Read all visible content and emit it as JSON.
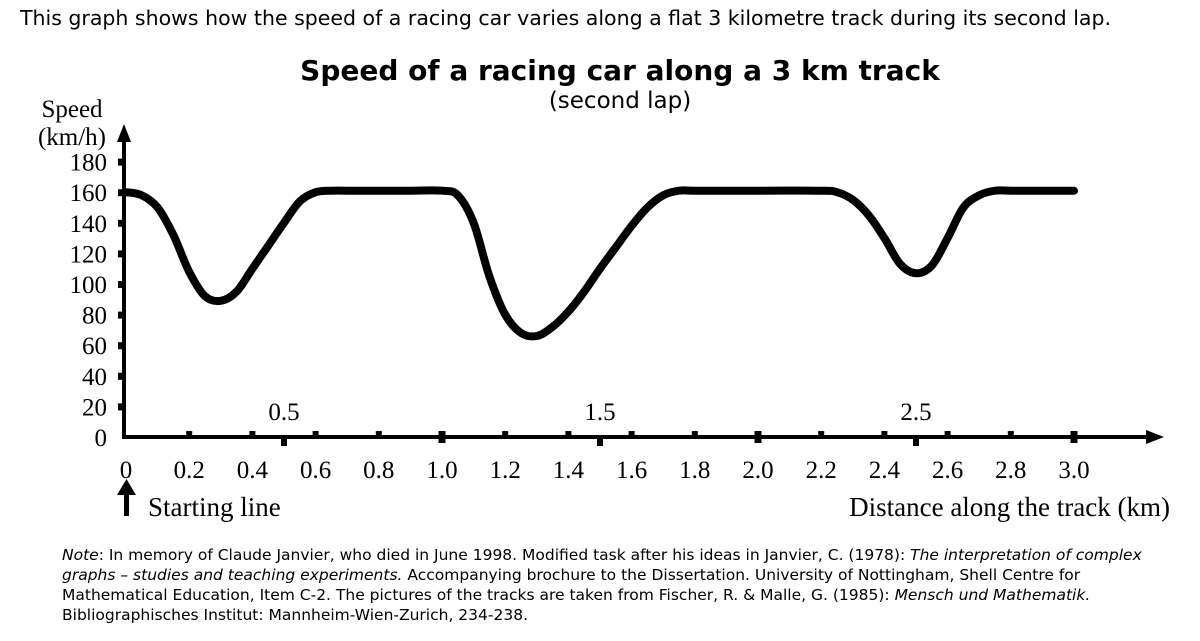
{
  "intro": "This graph shows how the speed of a racing car varies along a flat 3 kilometre track during its second lap.",
  "chart_data": {
    "type": "line",
    "title": "Speed of a racing car along a 3 km track",
    "subtitle": "(second lap)",
    "ylabel": [
      "Speed",
      "(km/h)"
    ],
    "xlabel": "Distance along the track (km)",
    "start_label": "Starting line",
    "xlim": [
      0,
      3.0
    ],
    "ylim": [
      0,
      180
    ],
    "x_ticks": [
      "0",
      "0.2",
      "0.4",
      "0.6",
      "0.8",
      "1.0",
      "1.2",
      "1.4",
      "1.6",
      "1.8",
      "2.0",
      "2.2",
      "2.4",
      "2.6",
      "2.8",
      "3.0"
    ],
    "y_ticks": [
      "0",
      "20",
      "40",
      "60",
      "80",
      "100",
      "120",
      "140",
      "160",
      "180"
    ],
    "half_ticks": [
      "0.5",
      "1.5",
      "2.5"
    ],
    "grid": false,
    "legend": "none",
    "color": "#000000",
    "series": [
      {
        "x": [
          0,
          0.05,
          0.1,
          0.15,
          0.2,
          0.25,
          0.3,
          0.35,
          0.4,
          0.45,
          0.5,
          0.55,
          0.6,
          0.65,
          0.7,
          0.8,
          0.9,
          1.0,
          1.05,
          1.1,
          1.15,
          1.2,
          1.25,
          1.3,
          1.35,
          1.4,
          1.45,
          1.5,
          1.55,
          1.6,
          1.65,
          1.7,
          1.75,
          1.8,
          2.0,
          2.2,
          2.25,
          2.3,
          2.35,
          2.4,
          2.45,
          2.5,
          2.55,
          2.6,
          2.65,
          2.7,
          2.75,
          2.8,
          2.9,
          3.0
        ],
        "values": [
          160,
          158,
          150,
          132,
          108,
          92,
          89,
          95,
          110,
          125,
          140,
          154,
          160,
          161,
          161,
          161,
          161,
          161,
          158,
          140,
          105,
          80,
          68,
          66,
          72,
          82,
          95,
          110,
          124,
          138,
          150,
          158,
          161,
          161,
          161,
          161,
          160,
          155,
          145,
          130,
          113,
          107,
          112,
          130,
          150,
          158,
          161,
          161,
          161,
          161
        ]
      }
    ]
  },
  "note": {
    "label": "Note",
    "t1": ": In memory of Claude Janvier, who died in June 1998. Modified task after his ideas in Janvier, C. (1978): ",
    "i1": "The interpretation of complex graphs – studies and teaching experiments.",
    "t2": " Accompanying brochure to the Dissertation. University of Nottingham, Shell Centre for Mathematical Education, Item C-2. The pictures of the tracks are taken from Fischer, R. & Malle, G. (1985): ",
    "i2": "Mensch und Mathematik.",
    "t3": " Bibliographisches Institut: Mannheim-Wien-Zurich, 234-238."
  }
}
